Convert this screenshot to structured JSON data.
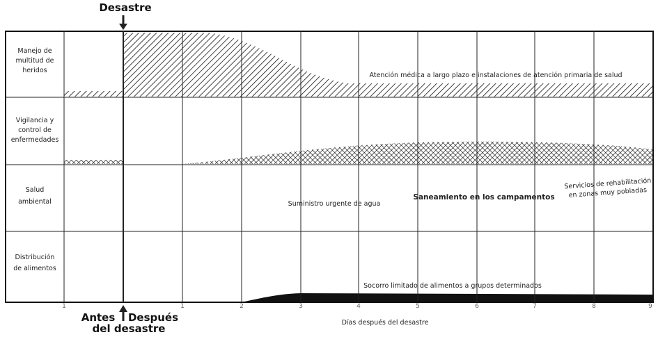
{
  "header": {
    "title": "Desastre"
  },
  "rows": [
    {
      "label": [
        "Manejo de",
        "multitud de",
        "heridos"
      ],
      "annotations": [
        "Atención médica a largo plazo e instalaciones de atención primaria de salud"
      ]
    },
    {
      "label": [
        "Vigilancia y",
        "control de",
        "enfermedades"
      ],
      "annotations": []
    },
    {
      "label": [
        "Salud",
        "ambiental"
      ],
      "annotations": [
        "Suministro urgente de agua",
        "Saneamiento en los campamentos",
        "Servicios de rehabilitación",
        "en zonas muy pobladas"
      ]
    },
    {
      "label": [
        "Distribución",
        "de alimentos"
      ],
      "annotations": [
        "Socorro limitado de alimentos a grupos determinados"
      ]
    }
  ],
  "x_axis": {
    "ticks": [
      "1",
      "1",
      "2",
      "3",
      "4",
      "5",
      "6",
      "7",
      "8",
      "9"
    ],
    "title": "Días después del desastre"
  },
  "footer": {
    "before": "Antes",
    "after": [
      "Después",
      "del desastre"
    ]
  }
}
